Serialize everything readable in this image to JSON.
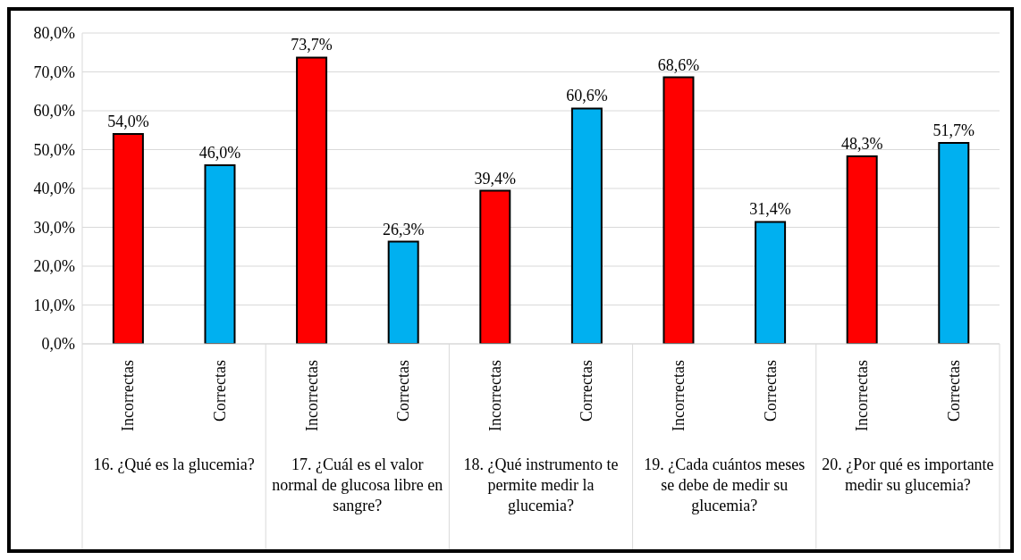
{
  "chart_data": {
    "type": "bar",
    "categories": [
      "Incorrectas",
      "Correctas",
      "Incorrectas",
      "Correctas",
      "Incorrectas",
      "Correctas",
      "Incorrectas",
      "Correctas",
      "Incorrectas",
      "Correctas"
    ],
    "values": [
      54.0,
      46.0,
      73.7,
      26.3,
      39.4,
      60.6,
      68.6,
      31.4,
      48.3,
      51.7
    ],
    "colors": [
      "#ff0000",
      "#00b0f0",
      "#ff0000",
      "#00b0f0",
      "#ff0000",
      "#00b0f0",
      "#ff0000",
      "#00b0f0",
      "#ff0000",
      "#00b0f0"
    ],
    "value_labels": [
      "54,0%",
      "46,0%",
      "73,7%",
      "26,3%",
      "39,4%",
      "60,6%",
      "68,6%",
      "31,4%",
      "48,3%",
      "51,7%"
    ],
    "ylim": [
      0,
      80
    ],
    "yticks": [
      {
        "value": 0,
        "label": "0,0%"
      },
      {
        "value": 10,
        "label": "10,0%"
      },
      {
        "value": 20,
        "label": "20,0%"
      },
      {
        "value": 30,
        "label": "30,0%"
      },
      {
        "value": 40,
        "label": "40,0%"
      },
      {
        "value": 50,
        "label": "50,0%"
      },
      {
        "value": 60,
        "label": "60,0%"
      },
      {
        "value": 70,
        "label": "70,0%"
      },
      {
        "value": 80,
        "label": "80,0%"
      }
    ],
    "grid": "y",
    "legend": false,
    "annotations": [
      "16. ¿Qué es la glucemia?",
      "17. ¿Cuál es el valor normal de glucosa libre en sangre?",
      "18. ¿Qué instrumento te permite medir la glucemia?",
      "19. ¿Cada cuántos meses se debe de medir su glucemia?",
      "20. ¿Por qué es importante medir su glucemia?"
    ]
  }
}
